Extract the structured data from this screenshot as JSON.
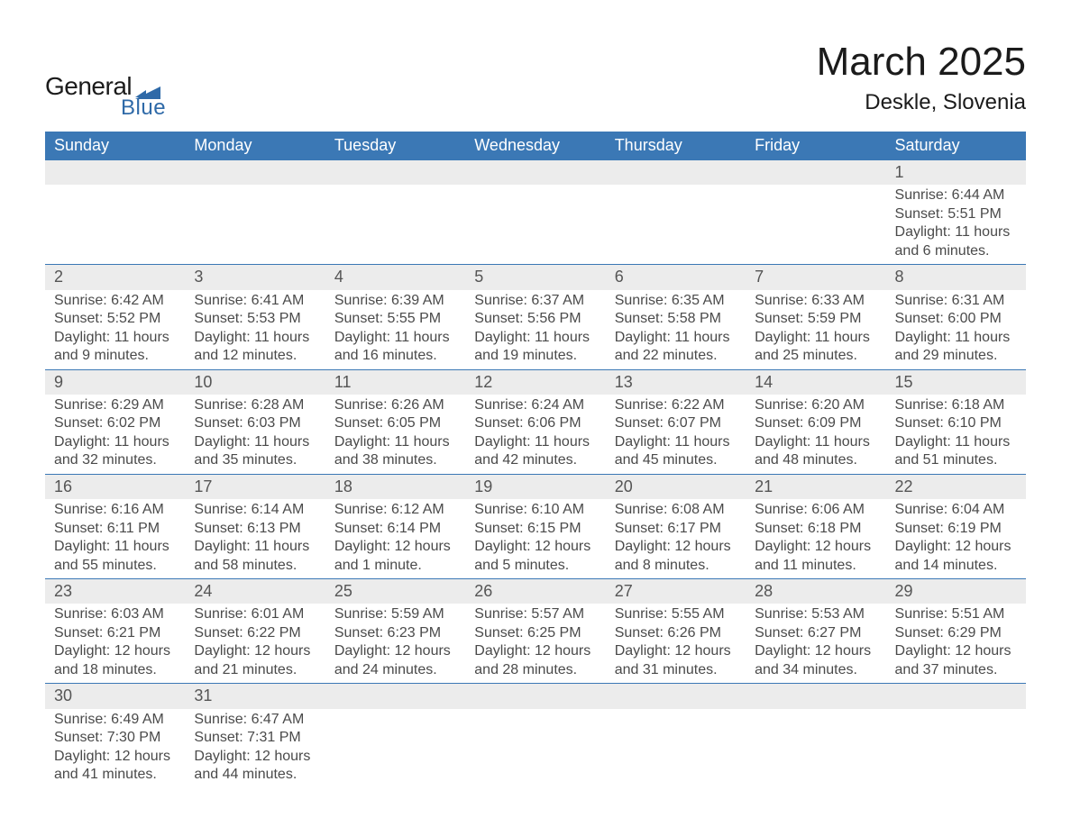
{
  "logo": {
    "text1": "General",
    "text2": "Blue",
    "shape_color": "#2f6aa8"
  },
  "title": "March 2025",
  "location": "Deskle, Slovenia",
  "colors": {
    "header_bg": "#3b78b5",
    "header_text": "#ffffff",
    "daynum_bg": "#ececec",
    "text": "#4a4a4a",
    "rule": "#3b78b5"
  },
  "typography": {
    "title_fontsize": 44,
    "location_fontsize": 24,
    "weekday_fontsize": 18,
    "daynum_fontsize": 18,
    "body_fontsize": 16
  },
  "weekdays": [
    "Sunday",
    "Monday",
    "Tuesday",
    "Wednesday",
    "Thursday",
    "Friday",
    "Saturday"
  ],
  "weeks": [
    [
      null,
      null,
      null,
      null,
      null,
      null,
      {
        "n": "1",
        "sunrise": "Sunrise: 6:44 AM",
        "sunset": "Sunset: 5:51 PM",
        "day1": "Daylight: 11 hours",
        "day2": "and 6 minutes."
      }
    ],
    [
      {
        "n": "2",
        "sunrise": "Sunrise: 6:42 AM",
        "sunset": "Sunset: 5:52 PM",
        "day1": "Daylight: 11 hours",
        "day2": "and 9 minutes."
      },
      {
        "n": "3",
        "sunrise": "Sunrise: 6:41 AM",
        "sunset": "Sunset: 5:53 PM",
        "day1": "Daylight: 11 hours",
        "day2": "and 12 minutes."
      },
      {
        "n": "4",
        "sunrise": "Sunrise: 6:39 AM",
        "sunset": "Sunset: 5:55 PM",
        "day1": "Daylight: 11 hours",
        "day2": "and 16 minutes."
      },
      {
        "n": "5",
        "sunrise": "Sunrise: 6:37 AM",
        "sunset": "Sunset: 5:56 PM",
        "day1": "Daylight: 11 hours",
        "day2": "and 19 minutes."
      },
      {
        "n": "6",
        "sunrise": "Sunrise: 6:35 AM",
        "sunset": "Sunset: 5:58 PM",
        "day1": "Daylight: 11 hours",
        "day2": "and 22 minutes."
      },
      {
        "n": "7",
        "sunrise": "Sunrise: 6:33 AM",
        "sunset": "Sunset: 5:59 PM",
        "day1": "Daylight: 11 hours",
        "day2": "and 25 minutes."
      },
      {
        "n": "8",
        "sunrise": "Sunrise: 6:31 AM",
        "sunset": "Sunset: 6:00 PM",
        "day1": "Daylight: 11 hours",
        "day2": "and 29 minutes."
      }
    ],
    [
      {
        "n": "9",
        "sunrise": "Sunrise: 6:29 AM",
        "sunset": "Sunset: 6:02 PM",
        "day1": "Daylight: 11 hours",
        "day2": "and 32 minutes."
      },
      {
        "n": "10",
        "sunrise": "Sunrise: 6:28 AM",
        "sunset": "Sunset: 6:03 PM",
        "day1": "Daylight: 11 hours",
        "day2": "and 35 minutes."
      },
      {
        "n": "11",
        "sunrise": "Sunrise: 6:26 AM",
        "sunset": "Sunset: 6:05 PM",
        "day1": "Daylight: 11 hours",
        "day2": "and 38 minutes."
      },
      {
        "n": "12",
        "sunrise": "Sunrise: 6:24 AM",
        "sunset": "Sunset: 6:06 PM",
        "day1": "Daylight: 11 hours",
        "day2": "and 42 minutes."
      },
      {
        "n": "13",
        "sunrise": "Sunrise: 6:22 AM",
        "sunset": "Sunset: 6:07 PM",
        "day1": "Daylight: 11 hours",
        "day2": "and 45 minutes."
      },
      {
        "n": "14",
        "sunrise": "Sunrise: 6:20 AM",
        "sunset": "Sunset: 6:09 PM",
        "day1": "Daylight: 11 hours",
        "day2": "and 48 minutes."
      },
      {
        "n": "15",
        "sunrise": "Sunrise: 6:18 AM",
        "sunset": "Sunset: 6:10 PM",
        "day1": "Daylight: 11 hours",
        "day2": "and 51 minutes."
      }
    ],
    [
      {
        "n": "16",
        "sunrise": "Sunrise: 6:16 AM",
        "sunset": "Sunset: 6:11 PM",
        "day1": "Daylight: 11 hours",
        "day2": "and 55 minutes."
      },
      {
        "n": "17",
        "sunrise": "Sunrise: 6:14 AM",
        "sunset": "Sunset: 6:13 PM",
        "day1": "Daylight: 11 hours",
        "day2": "and 58 minutes."
      },
      {
        "n": "18",
        "sunrise": "Sunrise: 6:12 AM",
        "sunset": "Sunset: 6:14 PM",
        "day1": "Daylight: 12 hours",
        "day2": "and 1 minute."
      },
      {
        "n": "19",
        "sunrise": "Sunrise: 6:10 AM",
        "sunset": "Sunset: 6:15 PM",
        "day1": "Daylight: 12 hours",
        "day2": "and 5 minutes."
      },
      {
        "n": "20",
        "sunrise": "Sunrise: 6:08 AM",
        "sunset": "Sunset: 6:17 PM",
        "day1": "Daylight: 12 hours",
        "day2": "and 8 minutes."
      },
      {
        "n": "21",
        "sunrise": "Sunrise: 6:06 AM",
        "sunset": "Sunset: 6:18 PM",
        "day1": "Daylight: 12 hours",
        "day2": "and 11 minutes."
      },
      {
        "n": "22",
        "sunrise": "Sunrise: 6:04 AM",
        "sunset": "Sunset: 6:19 PM",
        "day1": "Daylight: 12 hours",
        "day2": "and 14 minutes."
      }
    ],
    [
      {
        "n": "23",
        "sunrise": "Sunrise: 6:03 AM",
        "sunset": "Sunset: 6:21 PM",
        "day1": "Daylight: 12 hours",
        "day2": "and 18 minutes."
      },
      {
        "n": "24",
        "sunrise": "Sunrise: 6:01 AM",
        "sunset": "Sunset: 6:22 PM",
        "day1": "Daylight: 12 hours",
        "day2": "and 21 minutes."
      },
      {
        "n": "25",
        "sunrise": "Sunrise: 5:59 AM",
        "sunset": "Sunset: 6:23 PM",
        "day1": "Daylight: 12 hours",
        "day2": "and 24 minutes."
      },
      {
        "n": "26",
        "sunrise": "Sunrise: 5:57 AM",
        "sunset": "Sunset: 6:25 PM",
        "day1": "Daylight: 12 hours",
        "day2": "and 28 minutes."
      },
      {
        "n": "27",
        "sunrise": "Sunrise: 5:55 AM",
        "sunset": "Sunset: 6:26 PM",
        "day1": "Daylight: 12 hours",
        "day2": "and 31 minutes."
      },
      {
        "n": "28",
        "sunrise": "Sunrise: 5:53 AM",
        "sunset": "Sunset: 6:27 PM",
        "day1": "Daylight: 12 hours",
        "day2": "and 34 minutes."
      },
      {
        "n": "29",
        "sunrise": "Sunrise: 5:51 AM",
        "sunset": "Sunset: 6:29 PM",
        "day1": "Daylight: 12 hours",
        "day2": "and 37 minutes."
      }
    ],
    [
      {
        "n": "30",
        "sunrise": "Sunrise: 6:49 AM",
        "sunset": "Sunset: 7:30 PM",
        "day1": "Daylight: 12 hours",
        "day2": "and 41 minutes."
      },
      {
        "n": "31",
        "sunrise": "Sunrise: 6:47 AM",
        "sunset": "Sunset: 7:31 PM",
        "day1": "Daylight: 12 hours",
        "day2": "and 44 minutes."
      },
      null,
      null,
      null,
      null,
      null
    ]
  ]
}
